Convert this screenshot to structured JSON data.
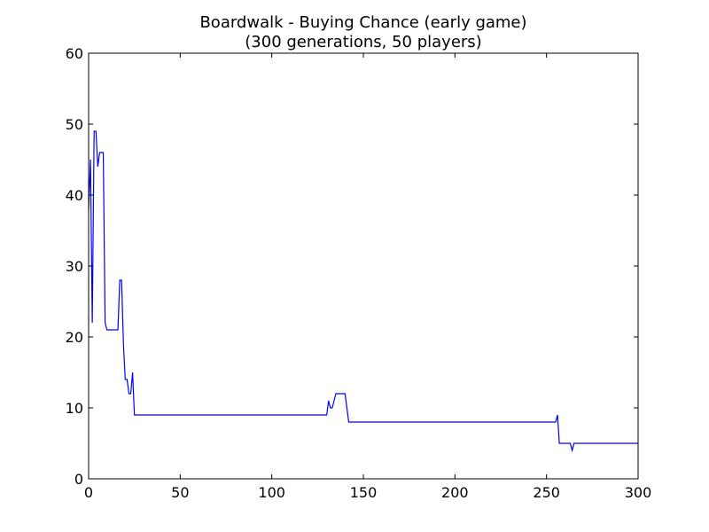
{
  "chart_data": {
    "type": "line",
    "title_lines": [
      "Boardwalk - Buying Chance (early game)",
      "(300 generations, 50 players)"
    ],
    "xlabel": "",
    "ylabel": "",
    "xlim": [
      0,
      300
    ],
    "ylim": [
      0,
      60
    ],
    "x_ticks": [
      0,
      50,
      100,
      150,
      200,
      250,
      300
    ],
    "y_ticks": [
      0,
      10,
      20,
      30,
      40,
      50,
      60
    ],
    "grid": false,
    "legend": "none",
    "series": [
      {
        "color": "#0000ff",
        "points": [
          [
            0,
            38
          ],
          [
            1,
            45
          ],
          [
            2,
            22
          ],
          [
            3,
            49
          ],
          [
            4,
            49
          ],
          [
            5,
            44
          ],
          [
            6,
            46
          ],
          [
            7,
            46
          ],
          [
            8,
            46
          ],
          [
            9,
            22
          ],
          [
            10,
            21
          ],
          [
            11,
            21
          ],
          [
            12,
            21
          ],
          [
            13,
            21
          ],
          [
            14,
            21
          ],
          [
            15,
            21
          ],
          [
            16,
            21
          ],
          [
            17,
            28
          ],
          [
            18,
            28
          ],
          [
            19,
            19
          ],
          [
            20,
            14
          ],
          [
            21,
            14
          ],
          [
            22,
            12
          ],
          [
            23,
            12
          ],
          [
            24,
            15
          ],
          [
            25,
            9
          ],
          [
            26,
            9
          ],
          [
            50,
            9
          ],
          [
            100,
            9
          ],
          [
            130,
            9
          ],
          [
            131,
            11
          ],
          [
            132,
            10
          ],
          [
            133,
            10
          ],
          [
            134,
            11
          ],
          [
            135,
            12
          ],
          [
            136,
            12
          ],
          [
            137,
            12
          ],
          [
            138,
            12
          ],
          [
            139,
            12
          ],
          [
            140,
            12
          ],
          [
            141,
            10
          ],
          [
            142,
            8
          ],
          [
            143,
            8
          ],
          [
            200,
            8
          ],
          [
            254,
            8
          ],
          [
            255,
            8
          ],
          [
            256,
            9
          ],
          [
            257,
            5
          ],
          [
            260,
            5
          ],
          [
            263,
            5
          ],
          [
            264,
            4
          ],
          [
            265,
            5
          ],
          [
            270,
            5
          ],
          [
            300,
            5
          ]
        ]
      }
    ]
  }
}
